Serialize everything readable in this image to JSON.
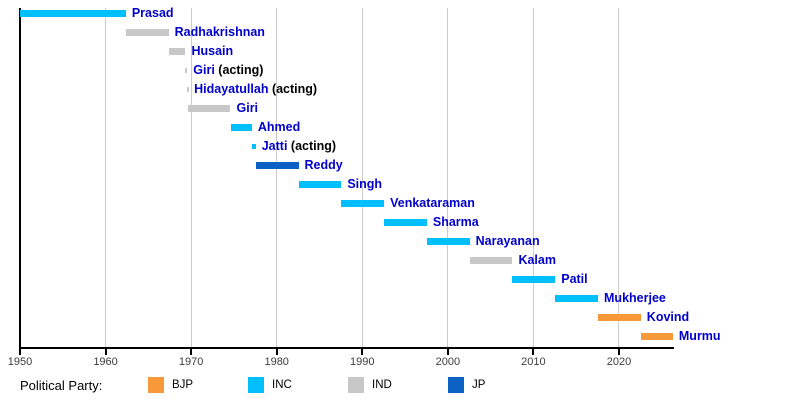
{
  "chart_data": {
    "type": "timeline",
    "title": "",
    "axis": {
      "min": 1950,
      "max": 2026.3,
      "ticks": [
        1950,
        1960,
        1970,
        1980,
        1990,
        2000,
        2010,
        2020
      ],
      "grid": "vertical-decade-lines"
    },
    "rows": [
      {
        "name": "Prasad",
        "suffix": "",
        "party": "INC",
        "start": 1950.05,
        "end": 1962.37
      },
      {
        "name": "Radhakrishnan",
        "suffix": "",
        "party": "IND",
        "start": 1962.37,
        "end": 1967.37
      },
      {
        "name": "Husain",
        "suffix": "",
        "party": "IND",
        "start": 1967.37,
        "end": 1969.34
      },
      {
        "name": "Giri",
        "suffix": " (acting)",
        "party": "IND",
        "start": 1969.34,
        "end": 1969.55
      },
      {
        "name": "Hidayatullah",
        "suffix": " (acting)",
        "party": "IND",
        "start": 1969.55,
        "end": 1969.65
      },
      {
        "name": "Giri",
        "suffix": "",
        "party": "IND",
        "start": 1969.65,
        "end": 1974.6
      },
      {
        "name": "Ahmed",
        "suffix": "",
        "party": "INC",
        "start": 1974.6,
        "end": 1977.1
      },
      {
        "name": "Jatti",
        "suffix": " (acting)",
        "party": "INC",
        "start": 1977.1,
        "end": 1977.55
      },
      {
        "name": "Reddy",
        "suffix": "",
        "party": "JP",
        "start": 1977.55,
        "end": 1982.55
      },
      {
        "name": "Singh",
        "suffix": "",
        "party": "INC",
        "start": 1982.55,
        "end": 1987.55
      },
      {
        "name": "Venkataraman",
        "suffix": "",
        "party": "INC",
        "start": 1987.55,
        "end": 1992.55
      },
      {
        "name": "Sharma",
        "suffix": "",
        "party": "INC",
        "start": 1992.55,
        "end": 1997.55
      },
      {
        "name": "Narayanan",
        "suffix": "",
        "party": "INC",
        "start": 1997.55,
        "end": 2002.55
      },
      {
        "name": "Kalam",
        "suffix": "",
        "party": "IND",
        "start": 2002.55,
        "end": 2007.55
      },
      {
        "name": "Patil",
        "suffix": "",
        "party": "INC",
        "start": 2007.55,
        "end": 2012.55
      },
      {
        "name": "Mukherjee",
        "suffix": "",
        "party": "INC",
        "start": 2012.55,
        "end": 2017.55
      },
      {
        "name": "Kovind",
        "suffix": "",
        "party": "BJP",
        "start": 2017.55,
        "end": 2022.55
      },
      {
        "name": "Murmu",
        "suffix": "",
        "party": "BJP",
        "start": 2022.55,
        "end": 2026.3
      }
    ],
    "party_colors": {
      "BJP": "#F89939",
      "INC": "#00BFFF",
      "IND": "#C8C8C8",
      "JP": "#0B62C4"
    },
    "name_label_color": "#0000CC",
    "legend": {
      "title": "Political Party:",
      "entries": [
        "BJP",
        "INC",
        "IND",
        "JP"
      ]
    }
  }
}
